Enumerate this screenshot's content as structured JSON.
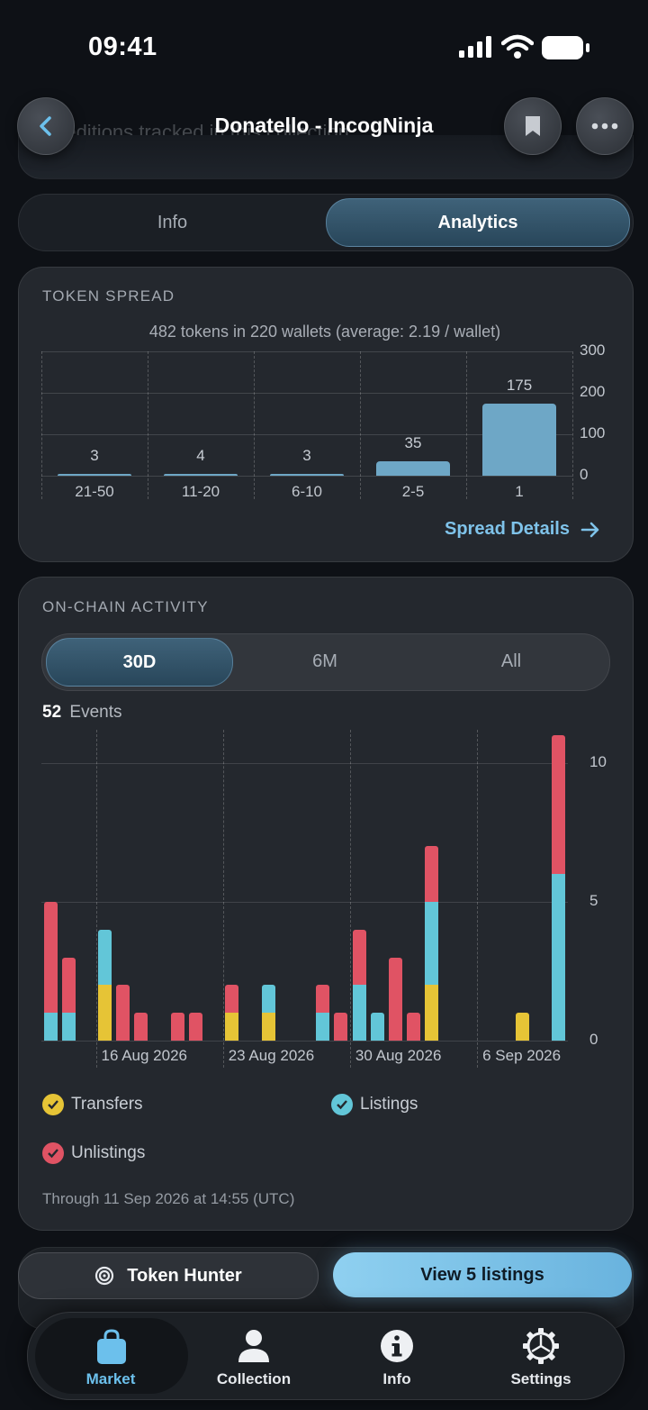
{
  "status_bar": {
    "time": "09:41"
  },
  "header": {
    "title": "Donatello - IncogNinja",
    "ghost_text": "...editions tracked in this collection."
  },
  "segment": {
    "tabs": [
      "Info",
      "Analytics"
    ],
    "selected": "Analytics"
  },
  "token_spread": {
    "title": "TOKEN SPREAD",
    "summary": "482 tokens in 220 wallets (average: 2.19 / wallet)",
    "details_link": "Spread Details"
  },
  "chart_data": [
    {
      "type": "bar",
      "categories": [
        "21-50",
        "11-20",
        "6-10",
        "2-5",
        "1"
      ],
      "values": [
        3,
        4,
        3,
        35,
        175
      ],
      "value_labels": [
        "3",
        "4",
        "3",
        "35",
        "175"
      ],
      "ylim": [
        0,
        300
      ],
      "yticks": [
        "300",
        "200",
        "100",
        "0"
      ],
      "color": "#6ea7c6"
    },
    {
      "type": "bar",
      "stacked": true,
      "x_ticks": [
        "16 Aug 2026",
        "23 Aug 2026",
        "30 Aug 2026",
        "6 Sep 2026"
      ],
      "yticks": [
        "10",
        "5",
        "0"
      ],
      "ylim": [
        0,
        11
      ],
      "series": [
        {
          "name": "Transfers",
          "color": "#e6c436",
          "values": [
            0,
            0,
            0,
            2,
            0,
            0,
            0,
            0,
            0,
            0,
            1,
            0,
            1,
            0,
            0,
            0,
            0,
            0,
            0,
            0,
            0,
            2,
            0,
            0,
            0,
            0,
            1,
            0,
            0
          ]
        },
        {
          "name": "Listings",
          "color": "#62c6d8",
          "values": [
            1,
            1,
            0,
            2,
            0,
            0,
            0,
            0,
            0,
            0,
            0,
            0,
            1,
            0,
            0,
            1,
            0,
            2,
            1,
            0,
            0,
            3,
            0,
            0,
            0,
            0,
            0,
            0,
            6
          ]
        },
        {
          "name": "Unlistings",
          "color": "#e05364",
          "values": [
            4,
            2,
            0,
            0,
            2,
            1,
            0,
            1,
            1,
            0,
            1,
            0,
            0,
            0,
            0,
            1,
            1,
            2,
            0,
            3,
            1,
            2,
            0,
            0,
            0,
            0,
            0,
            0,
            5
          ]
        }
      ]
    }
  ],
  "activity": {
    "title": "ON-CHAIN ACTIVITY",
    "ranges": [
      "30D",
      "6M",
      "All"
    ],
    "selected_range": "30D",
    "events_count": "52",
    "events_label": "Events",
    "legend": [
      "Transfers",
      "Listings",
      "Unlistings"
    ],
    "footnote": "Through 11 Sep 2026 at 14:55 (UTC)"
  },
  "actions": {
    "token_hunter": "Token Hunter",
    "view_listings": "View 5 listings"
  },
  "tabbar": {
    "items": [
      "Market",
      "Collection",
      "Info",
      "Settings"
    ],
    "selected": "Market"
  },
  "colors": {
    "accent": "#7fc3ea",
    "transfers": "#e6c436",
    "listings": "#62c6d8",
    "unlistings": "#e05364"
  }
}
